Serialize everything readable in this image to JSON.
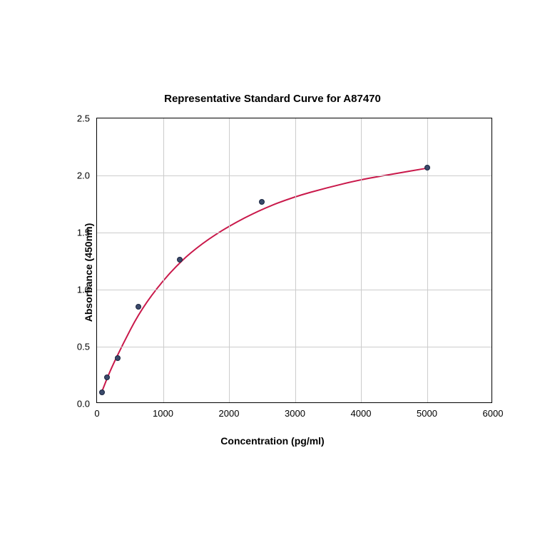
{
  "chart": {
    "type": "scatter-with-curve",
    "title": "Representative Standard Curve for A87470",
    "title_fontsize": 15,
    "xlabel": "Concentration (pg/ml)",
    "ylabel": "Absorbance (450nm)",
    "label_fontsize": 14,
    "tick_fontsize": 13,
    "background_color": "#ffffff",
    "grid_color": "#cccccc",
    "grid_on": true,
    "border_color": "#000000",
    "xlim": [
      0,
      6000
    ],
    "ylim": [
      0.0,
      2.5
    ],
    "xtick_step": 1000,
    "ytick_step": 0.5,
    "xticks": [
      0,
      1000,
      2000,
      3000,
      4000,
      5000,
      6000
    ],
    "yticks": [
      0.0,
      0.5,
      1.0,
      1.5,
      2.0,
      2.5
    ],
    "data_points": {
      "x": [
        78,
        156,
        312,
        625,
        1250,
        2500,
        5000
      ],
      "y": [
        0.1,
        0.23,
        0.4,
        0.85,
        1.26,
        1.77,
        2.07
      ]
    },
    "marker_color": "#3b4a6b",
    "marker_edge_color": "#1a2540",
    "marker_size": 8,
    "curve_color": "#c9184a",
    "curve_width": 2,
    "curve_points": {
      "x": [
        78,
        200,
        400,
        625,
        900,
        1250,
        1600,
        2000,
        2500,
        3000,
        3500,
        4000,
        4500,
        5000
      ],
      "y": [
        0.1,
        0.28,
        0.52,
        0.77,
        1.0,
        1.23,
        1.4,
        1.55,
        1.7,
        1.81,
        1.89,
        1.96,
        2.01,
        2.06
      ]
    }
  }
}
